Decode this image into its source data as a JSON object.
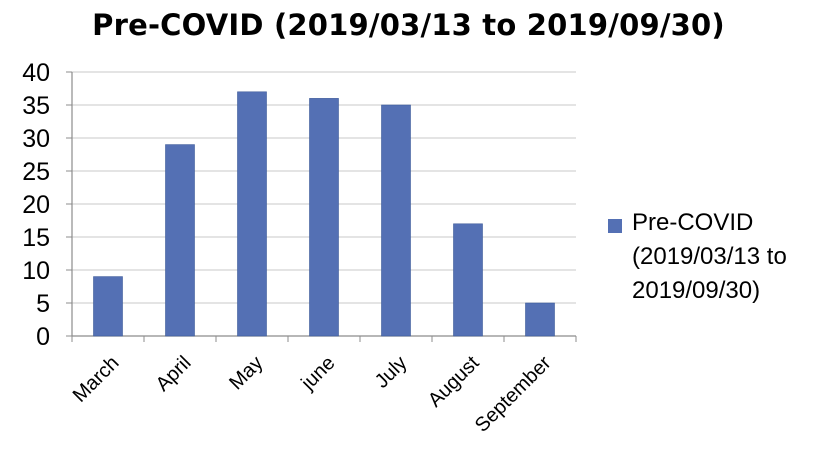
{
  "chart_data": {
    "type": "bar",
    "title": "Pre-COVID (2019/03/13 to 2019/09/30)",
    "xlabel": "",
    "ylabel": "",
    "categories": [
      "March",
      "April",
      "May",
      "june",
      "July",
      "August",
      "September"
    ],
    "series": [
      {
        "name": "Pre-COVID (2019/03/13 to 2019/09/30)",
        "values": [
          9,
          29,
          37,
          36,
          35,
          17,
          5
        ],
        "color": "#5470b4"
      }
    ],
    "ylim": [
      0,
      40
    ],
    "yticks": [
      "0",
      "5",
      "10",
      "15",
      "20",
      "25",
      "30",
      "35",
      "40"
    ],
    "grid": true,
    "legend": "right"
  }
}
